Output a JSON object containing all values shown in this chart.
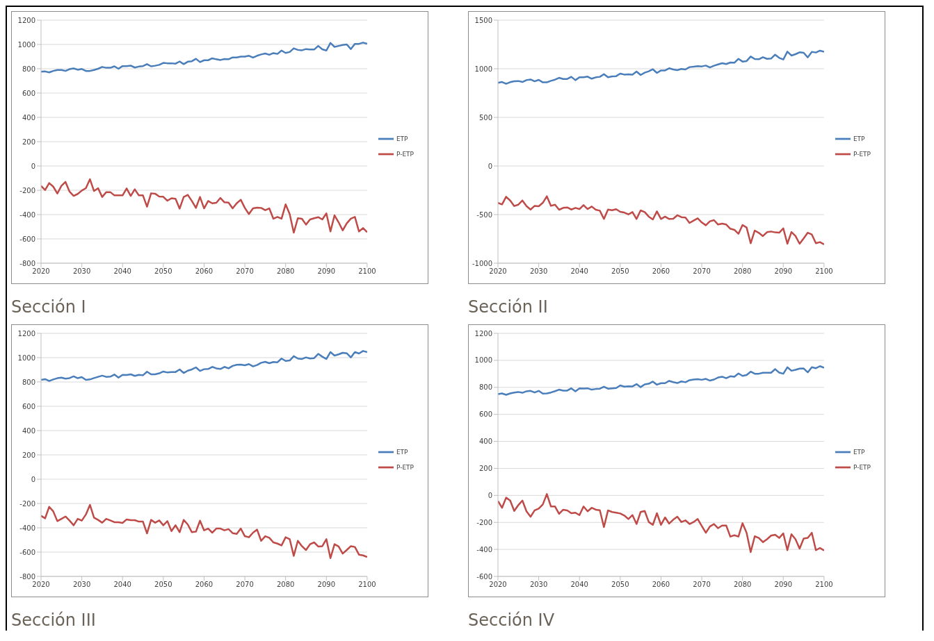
{
  "chart_data": [
    {
      "type": "line",
      "title": "Sección I",
      "legend": "right",
      "grid": "y",
      "xlim": [
        2020,
        2100
      ],
      "xticks": [
        2020,
        2030,
        2040,
        2050,
        2060,
        2070,
        2080,
        2090,
        2100
      ],
      "ylim": [
        -800,
        1200
      ],
      "yticks": [
        -800,
        -600,
        -400,
        -200,
        0,
        200,
        400,
        600,
        800,
        1000,
        1200
      ],
      "x": [
        2020,
        2021,
        2022,
        2023,
        2024,
        2025,
        2026,
        2027,
        2028,
        2029,
        2030,
        2031,
        2032,
        2033,
        2034,
        2035,
        2036,
        2037,
        2038,
        2039,
        2040,
        2041,
        2042,
        2043,
        2044,
        2045,
        2046,
        2047,
        2048,
        2049,
        2050,
        2051,
        2052,
        2053,
        2054,
        2055,
        2056,
        2057,
        2058,
        2059,
        2060,
        2061,
        2062,
        2063,
        2064,
        2065,
        2066,
        2067,
        2068,
        2069,
        2070,
        2071,
        2072,
        2073,
        2074,
        2075,
        2076,
        2077,
        2078,
        2079,
        2080,
        2081,
        2082,
        2083,
        2084,
        2085,
        2086,
        2087,
        2088,
        2089,
        2090,
        2091,
        2092,
        2093,
        2094,
        2095,
        2096,
        2097,
        2098,
        2099,
        2100
      ],
      "series": [
        {
          "name": "ETP",
          "color": "#4a7ebb",
          "values": [
            775,
            778,
            770,
            782,
            790,
            790,
            782,
            797,
            803,
            792,
            798,
            782,
            782,
            790,
            800,
            815,
            808,
            808,
            820,
            800,
            822,
            822,
            826,
            810,
            818,
            822,
            838,
            820,
            825,
            832,
            848,
            845,
            845,
            842,
            860,
            838,
            858,
            862,
            882,
            855,
            870,
            870,
            886,
            878,
            872,
            880,
            878,
            893,
            893,
            900,
            900,
            907,
            892,
            907,
            918,
            926,
            915,
            929,
            922,
            950,
            930,
            938,
            968,
            955,
            952,
            962,
            958,
            958,
            988,
            960,
            950,
            1012,
            980,
            988,
            996,
            1000,
            962,
            1005,
            1005,
            1015,
            1005
          ]
        },
        {
          "name": "P-ETP",
          "color": "#be4b48",
          "values": [
            -164,
            -198,
            -141,
            -170,
            -227,
            -164,
            -131,
            -211,
            -246,
            -230,
            -202,
            -183,
            -109,
            -206,
            -183,
            -255,
            -215,
            -215,
            -242,
            -242,
            -242,
            -185,
            -246,
            -192,
            -242,
            -242,
            -335,
            -225,
            -228,
            -251,
            -253,
            -286,
            -266,
            -270,
            -351,
            -255,
            -238,
            -288,
            -345,
            -255,
            -349,
            -288,
            -307,
            -303,
            -263,
            -299,
            -301,
            -349,
            -307,
            -278,
            -345,
            -396,
            -349,
            -343,
            -345,
            -364,
            -349,
            -434,
            -419,
            -434,
            -316,
            -396,
            -549,
            -430,
            -434,
            -482,
            -440,
            -430,
            -421,
            -440,
            -390,
            -539,
            -406,
            -463,
            -530,
            -472,
            -434,
            -419,
            -539,
            -511,
            -545
          ]
        }
      ]
    },
    {
      "type": "line",
      "title": "Sección II",
      "legend": "right",
      "grid": "y",
      "xlim": [
        2020,
        2100
      ],
      "xticks": [
        2020,
        2030,
        2040,
        2050,
        2060,
        2070,
        2080,
        2090,
        2100
      ],
      "ylim": [
        -1000,
        1500
      ],
      "yticks": [
        -1000,
        -500,
        0,
        500,
        1000,
        1500
      ],
      "x": [
        2020,
        2021,
        2022,
        2023,
        2024,
        2025,
        2026,
        2027,
        2028,
        2029,
        2030,
        2031,
        2032,
        2033,
        2034,
        2035,
        2036,
        2037,
        2038,
        2039,
        2040,
        2041,
        2042,
        2043,
        2044,
        2045,
        2046,
        2047,
        2048,
        2049,
        2050,
        2051,
        2052,
        2053,
        2054,
        2055,
        2056,
        2057,
        2058,
        2059,
        2060,
        2061,
        2062,
        2063,
        2064,
        2065,
        2066,
        2067,
        2068,
        2069,
        2070,
        2071,
        2072,
        2073,
        2074,
        2075,
        2076,
        2077,
        2078,
        2079,
        2080,
        2081,
        2082,
        2083,
        2084,
        2085,
        2086,
        2087,
        2088,
        2089,
        2090,
        2091,
        2092,
        2093,
        2094,
        2095,
        2096,
        2097,
        2098,
        2099,
        2100
      ],
      "series": [
        {
          "name": "ETP",
          "color": "#4a7ebb",
          "values": [
            855,
            864,
            845,
            862,
            871,
            874,
            864,
            883,
            890,
            871,
            886,
            860,
            860,
            876,
            888,
            907,
            895,
            895,
            917,
            883,
            912,
            912,
            919,
            898,
            912,
            917,
            945,
            912,
            921,
            924,
            950,
            940,
            943,
            940,
            971,
            936,
            960,
            974,
            995,
            957,
            983,
            983,
            1005,
            993,
            986,
            998,
            993,
            1017,
            1021,
            1026,
            1024,
            1033,
            1014,
            1031,
            1045,
            1057,
            1048,
            1064,
            1062,
            1102,
            1074,
            1079,
            1126,
            1100,
            1098,
            1119,
            1102,
            1105,
            1145,
            1112,
            1095,
            1176,
            1136,
            1150,
            1169,
            1164,
            1117,
            1174,
            1167,
            1186,
            1174
          ]
        },
        {
          "name": "P-ETP",
          "color": "#be4b48",
          "values": [
            -379,
            -395,
            -317,
            -355,
            -412,
            -398,
            -355,
            -412,
            -448,
            -410,
            -414,
            -379,
            -312,
            -410,
            -398,
            -450,
            -431,
            -426,
            -448,
            -431,
            -443,
            -402,
            -443,
            -417,
            -450,
            -460,
            -545,
            -448,
            -455,
            -445,
            -471,
            -479,
            -498,
            -474,
            -545,
            -457,
            -474,
            -521,
            -550,
            -467,
            -545,
            -521,
            -545,
            -543,
            -507,
            -526,
            -531,
            -586,
            -562,
            -538,
            -581,
            -610,
            -569,
            -557,
            -602,
            -593,
            -602,
            -645,
            -657,
            -698,
            -607,
            -633,
            -795,
            -664,
            -688,
            -721,
            -681,
            -674,
            -683,
            -686,
            -641,
            -800,
            -679,
            -721,
            -800,
            -745,
            -686,
            -705,
            -795,
            -783,
            -807
          ]
        }
      ]
    },
    {
      "type": "line",
      "title": "Sección III",
      "legend": "right",
      "grid": "y",
      "xlim": [
        2020,
        2100
      ],
      "xticks": [
        2020,
        2030,
        2040,
        2050,
        2060,
        2070,
        2080,
        2090,
        2100
      ],
      "ylim": [
        -800,
        1200
      ],
      "yticks": [
        -800,
        -600,
        -400,
        -200,
        0,
        200,
        400,
        600,
        800,
        1000,
        1200
      ],
      "x": [
        2020,
        2021,
        2022,
        2023,
        2024,
        2025,
        2026,
        2027,
        2028,
        2029,
        2030,
        2031,
        2032,
        2033,
        2034,
        2035,
        2036,
        2037,
        2038,
        2039,
        2040,
        2041,
        2042,
        2043,
        2044,
        2045,
        2046,
        2047,
        2048,
        2049,
        2050,
        2051,
        2052,
        2053,
        2054,
        2055,
        2056,
        2057,
        2058,
        2059,
        2060,
        2061,
        2062,
        2063,
        2064,
        2065,
        2066,
        2067,
        2068,
        2069,
        2070,
        2071,
        2072,
        2073,
        2074,
        2075,
        2076,
        2077,
        2078,
        2079,
        2080,
        2081,
        2082,
        2083,
        2084,
        2085,
        2086,
        2087,
        2088,
        2089,
        2090,
        2091,
        2092,
        2093,
        2094,
        2095,
        2096,
        2097,
        2098,
        2099,
        2100
      ],
      "series": [
        {
          "name": "ETP",
          "color": "#4a7ebb",
          "values": [
            817,
            823,
            808,
            821,
            831,
            836,
            827,
            832,
            846,
            831,
            840,
            817,
            821,
            832,
            842,
            852,
            842,
            844,
            861,
            836,
            859,
            857,
            863,
            850,
            859,
            855,
            884,
            863,
            863,
            871,
            886,
            878,
            882,
            882,
            903,
            874,
            893,
            903,
            920,
            891,
            905,
            907,
            924,
            912,
            907,
            924,
            912,
            932,
            941,
            943,
            937,
            947,
            928,
            939,
            958,
            966,
            954,
            964,
            962,
            993,
            973,
            977,
            1012,
            993,
            989,
            1002,
            993,
            996,
            1031,
            1008,
            989,
            1046,
            1017,
            1027,
            1040,
            1036,
            1002,
            1046,
            1034,
            1055,
            1046
          ]
        },
        {
          "name": "P-ETP",
          "color": "#be4b48",
          "values": [
            -301,
            -322,
            -227,
            -265,
            -345,
            -326,
            -307,
            -341,
            -379,
            -326,
            -341,
            -291,
            -211,
            -316,
            -335,
            -358,
            -326,
            -339,
            -354,
            -354,
            -360,
            -331,
            -337,
            -337,
            -349,
            -349,
            -446,
            -335,
            -358,
            -339,
            -379,
            -345,
            -427,
            -379,
            -436,
            -335,
            -373,
            -436,
            -432,
            -341,
            -421,
            -406,
            -440,
            -406,
            -406,
            -421,
            -411,
            -444,
            -450,
            -406,
            -469,
            -478,
            -440,
            -415,
            -507,
            -469,
            -482,
            -520,
            -530,
            -545,
            -478,
            -493,
            -631,
            -507,
            -551,
            -583,
            -535,
            -520,
            -554,
            -551,
            -493,
            -650,
            -535,
            -554,
            -612,
            -583,
            -551,
            -558,
            -621,
            -627,
            -640
          ]
        }
      ]
    },
    {
      "type": "line",
      "title": "Sección IV",
      "legend": "right",
      "grid": "y",
      "xlim": [
        2020,
        2100
      ],
      "xticks": [
        2020,
        2030,
        2040,
        2050,
        2060,
        2070,
        2080,
        2090,
        2100
      ],
      "ylim": [
        -600,
        1200
      ],
      "yticks": [
        -600,
        -400,
        -200,
        0,
        200,
        400,
        600,
        800,
        1000,
        1200
      ],
      "x": [
        2020,
        2021,
        2022,
        2023,
        2024,
        2025,
        2026,
        2027,
        2028,
        2029,
        2030,
        2031,
        2032,
        2033,
        2034,
        2035,
        2036,
        2037,
        2038,
        2039,
        2040,
        2041,
        2042,
        2043,
        2044,
        2045,
        2046,
        2047,
        2048,
        2049,
        2050,
        2051,
        2052,
        2053,
        2054,
        2055,
        2056,
        2057,
        2058,
        2059,
        2060,
        2061,
        2062,
        2063,
        2064,
        2065,
        2066,
        2067,
        2068,
        2069,
        2070,
        2071,
        2072,
        2073,
        2074,
        2075,
        2076,
        2077,
        2078,
        2079,
        2080,
        2081,
        2082,
        2083,
        2084,
        2085,
        2086,
        2087,
        2088,
        2089,
        2090,
        2091,
        2092,
        2093,
        2094,
        2095,
        2096,
        2097,
        2098,
        2099,
        2100
      ],
      "series": [
        {
          "name": "ETP",
          "color": "#4a7ebb",
          "values": [
            750,
            755,
            745,
            755,
            762,
            766,
            760,
            771,
            774,
            762,
            774,
            754,
            755,
            762,
            772,
            783,
            776,
            776,
            793,
            771,
            793,
            791,
            793,
            783,
            788,
            790,
            805,
            790,
            793,
            795,
            814,
            805,
            808,
            807,
            824,
            802,
            822,
            827,
            843,
            820,
            831,
            831,
            848,
            839,
            832,
            844,
            838,
            853,
            858,
            861,
            856,
            863,
            850,
            858,
            873,
            879,
            868,
            882,
            879,
            903,
            885,
            891,
            916,
            901,
            901,
            908,
            908,
            908,
            935,
            909,
            901,
            949,
            923,
            930,
            939,
            940,
            911,
            949,
            942,
            957,
            945
          ]
        },
        {
          "name": "P-ETP",
          "color": "#be4b48",
          "values": [
            -41,
            -92,
            -17,
            -38,
            -115,
            -72,
            -38,
            -118,
            -158,
            -111,
            -98,
            -67,
            10,
            -82,
            -82,
            -137,
            -106,
            -111,
            -132,
            -128,
            -146,
            -82,
            -118,
            -92,
            -106,
            -110,
            -235,
            -111,
            -123,
            -128,
            -134,
            -149,
            -175,
            -146,
            -212,
            -123,
            -115,
            -197,
            -218,
            -132,
            -218,
            -163,
            -209,
            -180,
            -158,
            -197,
            -185,
            -212,
            -197,
            -175,
            -226,
            -277,
            -230,
            -212,
            -243,
            -223,
            -223,
            -305,
            -295,
            -305,
            -206,
            -277,
            -420,
            -303,
            -315,
            -346,
            -325,
            -298,
            -291,
            -315,
            -281,
            -406,
            -288,
            -325,
            -394,
            -320,
            -315,
            -277,
            -406,
            -389,
            -408
          ]
        }
      ]
    }
  ]
}
